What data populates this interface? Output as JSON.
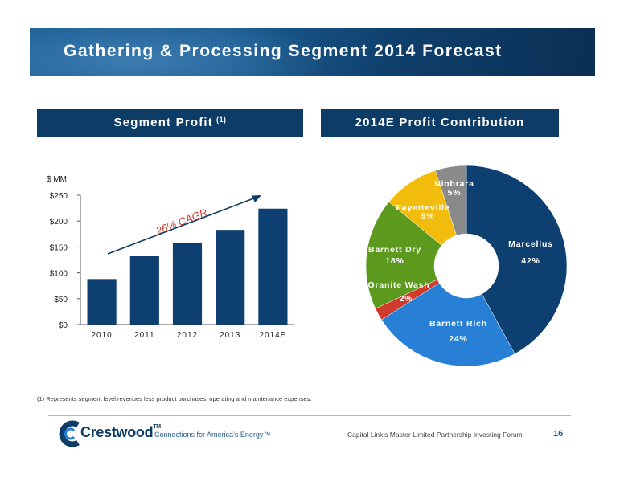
{
  "slide": {
    "title": "Gathering & Processing Segment 2014 Forecast",
    "footnote": "(1)   Represents segment level revenues less product purchases, operating and maintenance expenses.",
    "logo_text": "Crestwood",
    "logo_tm": "TM",
    "tagline": "Connections for America’s Energy™",
    "forum": "Capital Link’s Master Limited Partnership Investing Forum",
    "page_number": "16"
  },
  "bar_section": {
    "header": "Segment Profit",
    "header_sup": "(1)"
  },
  "pie_section": {
    "header": "2014E Profit Contribution"
  },
  "colors": {
    "navy": "#0d3c66",
    "bar": "#0d4070",
    "banner": "#1b5c92"
  },
  "chart_data": [
    {
      "type": "bar",
      "title": "Segment Profit (1)",
      "ylabel": "$ MM",
      "categories": [
        "2010",
        "2011",
        "2012",
        "2013",
        "2014E"
      ],
      "values": [
        88,
        132,
        158,
        183,
        224
      ],
      "ylim": [
        0,
        250
      ],
      "y_ticks": [
        0,
        50,
        100,
        150,
        200,
        250
      ],
      "y_tick_labels": [
        "$0",
        "$50",
        "$100",
        "$150",
        "$200",
        "$250"
      ],
      "grid": false,
      "annotation": {
        "text": "26% CAGR",
        "arrow": "trend from 2010 to 2014E"
      }
    },
    {
      "type": "pie",
      "style": "donut",
      "title": "2014E Profit Contribution",
      "slices": [
        {
          "name": "Marcellus",
          "value": 42,
          "label": "42%",
          "color": "#0d4070"
        },
        {
          "name": "Barnett Rich",
          "value": 24,
          "label": "24%",
          "color": "#2780d6"
        },
        {
          "name": "Granite Wash",
          "value": 2,
          "label": "2%",
          "color": "#cf3a2a"
        },
        {
          "name": "Barnett Dry",
          "value": 18,
          "label": "18%",
          "color": "#5b9a1c"
        },
        {
          "name": "Fayetteville",
          "value": 9,
          "label": "9%",
          "color": "#f2bc0d"
        },
        {
          "name": "Niobrara",
          "value": 5,
          "label": "5%",
          "color": "#8a8a8a"
        }
      ]
    }
  ]
}
